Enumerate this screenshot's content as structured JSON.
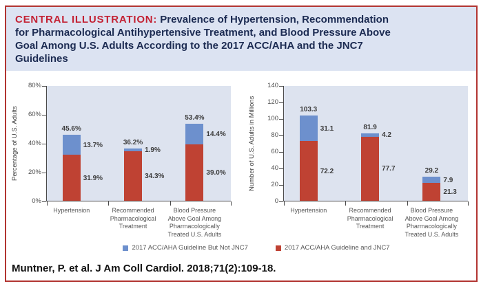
{
  "title": {
    "prefix": "CENTRAL ILLUSTRATION:",
    "text": "Prevalence of Hypertension, Recommendation\nfor Pharmacological Antihypertensive Treatment, and Blood Pressure Above\nGoal Among U.S. Adults According to the 2017 ACC/AHA and the JNC7\nGuidelines"
  },
  "citation": {
    "text": "Muntner, P. et al. J Am Coll Cardiol. 2018;71(2):109-18."
  },
  "legend": [
    {
      "label": "2017 ACC/AHA Guideline But Not JNC7",
      "color": "#6d90cd"
    },
    {
      "label": "2017 ACC/AHA Guideline and JNC7",
      "color": "#bf4233"
    }
  ],
  "colors": {
    "card_border": "#b23431",
    "title_bg": "#dce3f2",
    "title_accent": "#c32133",
    "title_text": "#1c2b52",
    "plot_bg": "#dde3ef",
    "bar_red": "#bf4233",
    "bar_blue": "#6d90cd",
    "axis": "#4a4a4a"
  },
  "chart_data": [
    {
      "type": "bar",
      "stacked": true,
      "grid": false,
      "legend_position": "bottom",
      "ylabel": "Percentage of U.S. Adults",
      "xlabel": "",
      "ylim": [
        0,
        80
      ],
      "yticks": [
        "0%",
        "20%",
        "40%",
        "60%",
        "80%"
      ],
      "categories": [
        "Hypertension",
        "Recommended\nPharmacological\nTreatment",
        "Blood Pressure\nAbove Goal Among\nPharmacologically\nTreated U.S. Adults"
      ],
      "series": [
        {
          "id": "acc-aha-and-jnc7",
          "name": "2017 ACC/AHA Guideline and JNC7",
          "color": "#bf4233",
          "values": [
            31.9,
            34.3,
            39.0
          ],
          "labels": [
            "31.9%",
            "34.3%",
            "39.0%"
          ]
        },
        {
          "id": "acc-aha-not-jnc7",
          "name": "2017 ACC/AHA Guideline But Not JNC7",
          "color": "#6d90cd",
          "values": [
            13.7,
            1.9,
            14.4
          ],
          "labels": [
            "13.7%",
            "1.9%",
            "14.4%"
          ]
        }
      ],
      "totals": [
        45.6,
        36.2,
        53.4
      ],
      "total_labels": [
        "45.6%",
        "36.2%",
        "53.4%"
      ]
    },
    {
      "type": "bar",
      "stacked": true,
      "grid": false,
      "legend_position": "bottom",
      "ylabel": "Number of U.S. Adults in Millions",
      "xlabel": "",
      "ylim": [
        0,
        140
      ],
      "yticks": [
        "0",
        "20",
        "40",
        "60",
        "80",
        "100",
        "120",
        "140"
      ],
      "categories": [
        "Hypertension",
        "Recommended\nPharmacological\nTreatment",
        "Blood Pressure\nAbove Goal Among\nPharmacologically\nTreated U.S. Adults"
      ],
      "series": [
        {
          "id": "acc-aha-and-jnc7",
          "name": "2017 ACC/AHA Guideline and JNC7",
          "color": "#bf4233",
          "values": [
            72.2,
            77.7,
            21.3
          ],
          "labels": [
            "72.2",
            "77.7",
            "21.3"
          ]
        },
        {
          "id": "acc-aha-not-jnc7",
          "name": "2017 ACC/AHA Guideline But Not JNC7",
          "color": "#6d90cd",
          "values": [
            31.1,
            4.2,
            7.9
          ],
          "labels": [
            "31.1",
            "4.2",
            "7.9"
          ]
        }
      ],
      "totals": [
        103.3,
        81.9,
        29.2
      ],
      "total_labels": [
        "103.3",
        "81.9",
        "29.2"
      ]
    }
  ]
}
